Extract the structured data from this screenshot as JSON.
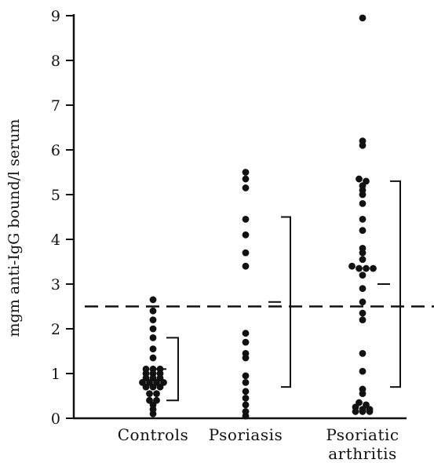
{
  "chart_data": {
    "type": "scatter",
    "title": "",
    "xlabel": "",
    "ylabel": "mgm anti-IgG bound/l serum",
    "ylim": [
      0,
      9
    ],
    "yticks": [
      "0",
      "1",
      "2",
      "3",
      "4",
      "5",
      "6",
      "7",
      "8",
      "9"
    ],
    "categories": [
      {
        "lines": [
          "Controls"
        ]
      },
      {
        "lines": [
          "Psoriasis"
        ]
      },
      {
        "lines": [
          "Psoriatic",
          "arthritis"
        ]
      }
    ],
    "series": [
      {
        "values": [
          2.65,
          2.4,
          2.2,
          2.0,
          1.8,
          1.55,
          1.35,
          1.1,
          1.1,
          1.1,
          1.0,
          1.0,
          1.0,
          0.9,
          0.9,
          0.9,
          0.8,
          0.8,
          0.8,
          0.8,
          0.7,
          0.7,
          0.7,
          0.55,
          0.55,
          0.4,
          0.4,
          0.3,
          0.2,
          0.1
        ],
        "range_bar": {
          "low": 0.4,
          "mid": 1.1,
          "high": 1.8
        }
      },
      {
        "values": [
          5.5,
          5.35,
          5.15,
          4.45,
          4.1,
          3.7,
          3.4,
          1.9,
          1.7,
          1.45,
          1.35,
          0.95,
          0.8,
          0.6,
          0.45,
          0.3,
          0.15,
          0.05
        ],
        "range_bar": {
          "low": 0.7,
          "mid": 2.6,
          "high": 4.5
        }
      },
      {
        "values": [
          8.95,
          6.2,
          6.1,
          5.35,
          5.3,
          5.2,
          5.1,
          5.0,
          4.8,
          4.45,
          4.2,
          3.8,
          3.7,
          3.55,
          3.4,
          3.35,
          3.35,
          3.35,
          3.2,
          2.9,
          2.6,
          2.35,
          2.2,
          1.45,
          1.05,
          0.65,
          0.55,
          0.35,
          0.3,
          0.25,
          0.2,
          0.2,
          0.15,
          0.15,
          0.15
        ],
        "range_bar": {
          "low": 0.7,
          "mid": 3.0,
          "high": 5.3
        }
      }
    ],
    "reference_line": {
      "y": 2.5,
      "style": "dashed"
    },
    "grid": false,
    "legend": "none"
  }
}
